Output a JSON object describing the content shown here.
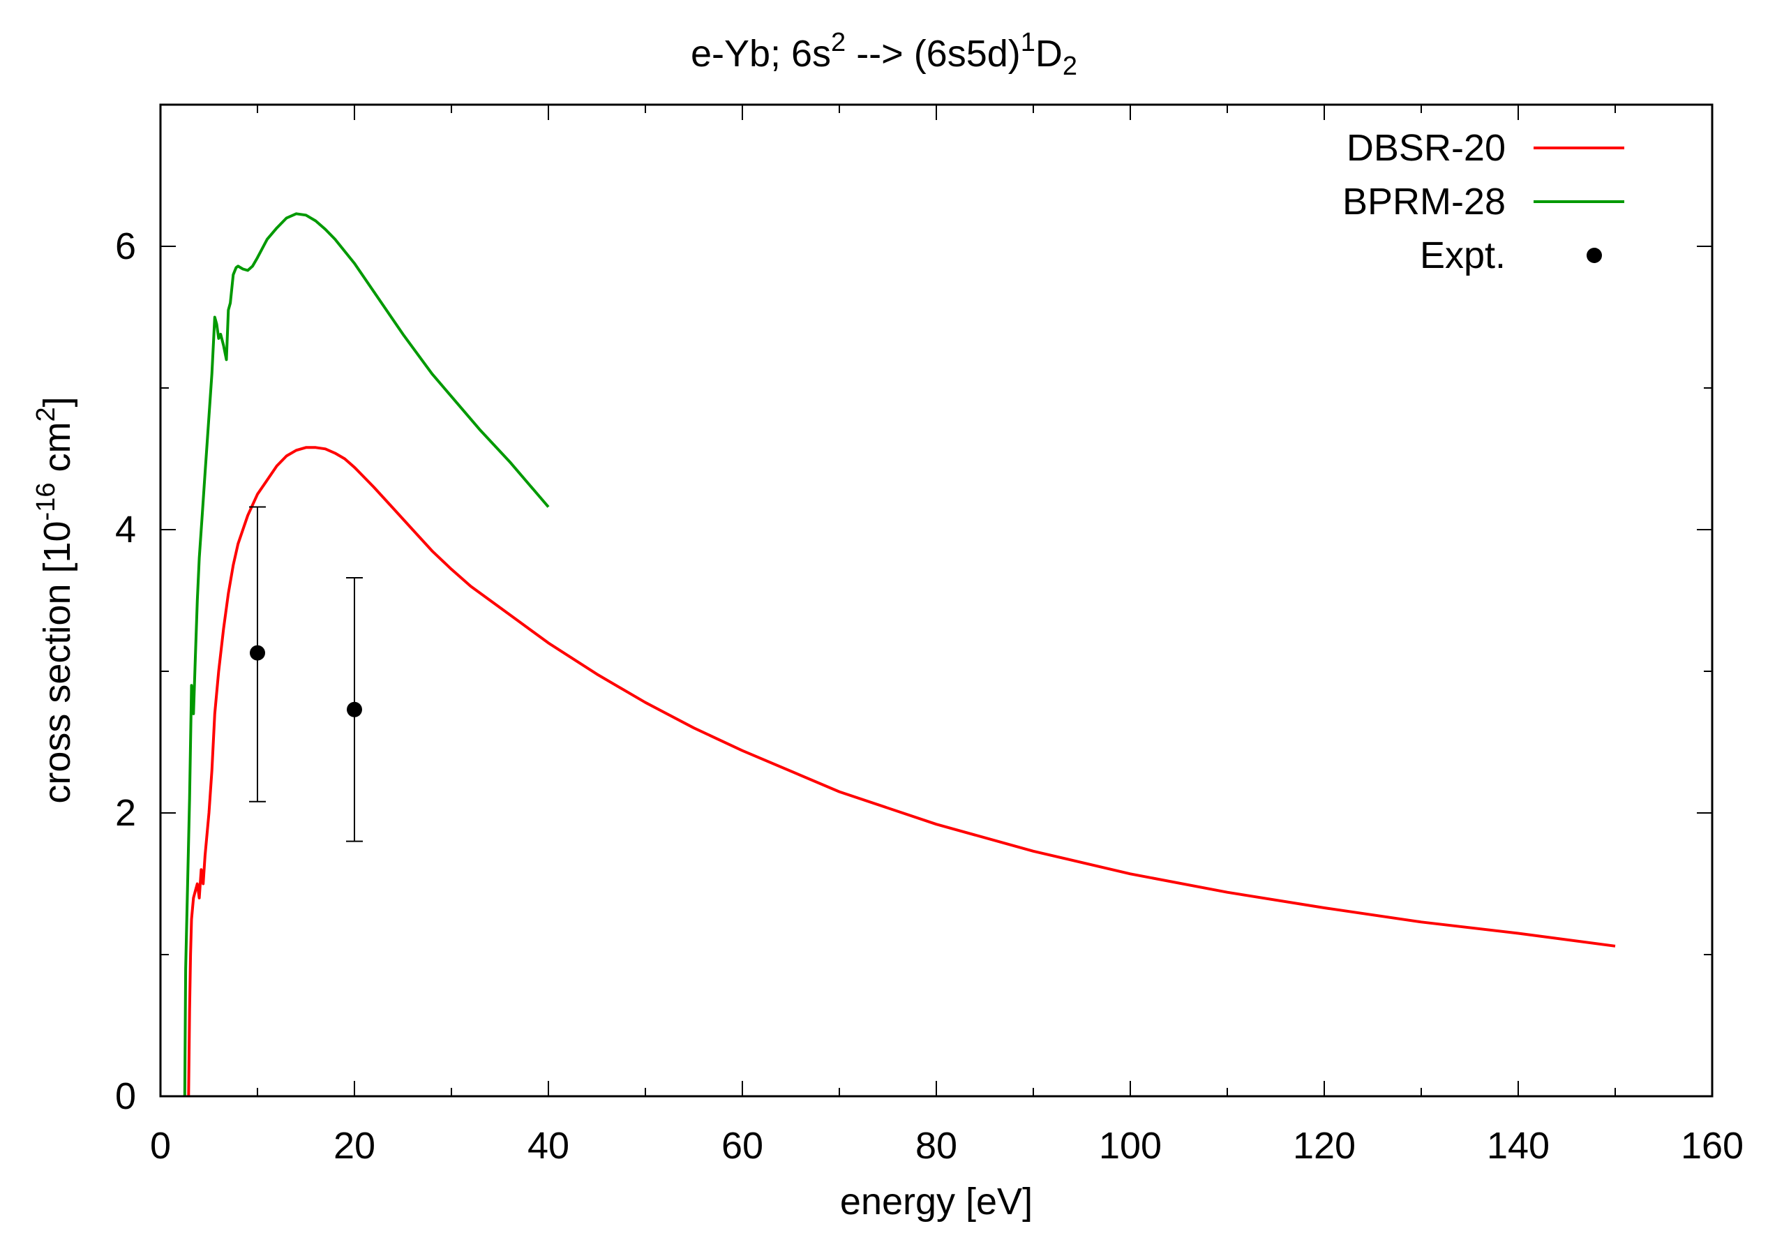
{
  "chart_data": {
    "type": "line",
    "title": {
      "prefix": "e-Yb; 6s",
      "sup1": "2",
      "middle": " --> (6s5d)",
      "sup2": "1",
      "main": "D",
      "sub": "2"
    },
    "xlabel": "energy [eV]",
    "ylabel": {
      "part1": "cross section [10",
      "sup1": "-16",
      "part2": " cm",
      "sup2": "2",
      "part3": "]"
    },
    "xlim": [
      0,
      160
    ],
    "ylim": [
      0,
      7
    ],
    "xticks": [
      0,
      20,
      40,
      60,
      80,
      100,
      120,
      140,
      160
    ],
    "yticks": [
      0,
      2,
      4,
      6
    ],
    "yminor_ticks": [
      1,
      3,
      5
    ],
    "xminor_ticks": [
      10,
      30,
      50,
      70,
      90,
      110,
      130,
      150
    ],
    "legend_position": "top-right",
    "series": [
      {
        "name": "DBSR-20",
        "color": "#ff0000",
        "style": "line",
        "x": [
          2.9,
          3.0,
          3.1,
          3.2,
          3.4,
          3.6,
          3.8,
          4.0,
          4.2,
          4.4,
          4.6,
          4.8,
          5.0,
          5.3,
          5.6,
          6.0,
          6.5,
          7.0,
          7.5,
          8.0,
          9.0,
          10.0,
          11.0,
          12.0,
          13.0,
          14.0,
          15.0,
          16.0,
          17.0,
          18.0,
          19.0,
          20.0,
          22.0,
          24.0,
          26.0,
          28.0,
          30.0,
          32.0,
          35.0,
          40.0,
          45.0,
          50.0,
          55.0,
          60.0,
          70.0,
          80.0,
          90.0,
          100.0,
          110.0,
          120.0,
          130.0,
          140.0,
          150.0
        ],
        "y": [
          0.0,
          0.6,
          1.0,
          1.25,
          1.4,
          1.45,
          1.5,
          1.4,
          1.6,
          1.5,
          1.7,
          1.85,
          2.0,
          2.3,
          2.7,
          3.0,
          3.3,
          3.55,
          3.75,
          3.9,
          4.1,
          4.25,
          4.35,
          4.45,
          4.52,
          4.56,
          4.58,
          4.58,
          4.57,
          4.54,
          4.5,
          4.44,
          4.3,
          4.15,
          4.0,
          3.85,
          3.72,
          3.6,
          3.45,
          3.2,
          2.98,
          2.78,
          2.6,
          2.44,
          2.15,
          1.92,
          1.73,
          1.57,
          1.44,
          1.33,
          1.23,
          1.15,
          1.06
        ]
      },
      {
        "name": "BPRM-28",
        "color": "#009900",
        "style": "line",
        "x": [
          2.5,
          2.6,
          2.8,
          3.0,
          3.2,
          3.4,
          3.6,
          3.8,
          4.0,
          4.3,
          4.6,
          5.0,
          5.3,
          5.6,
          5.8,
          6.0,
          6.2,
          6.5,
          6.8,
          7.0,
          7.2,
          7.5,
          7.8,
          8.0,
          8.5,
          9.0,
          9.5,
          10.0,
          11.0,
          12.0,
          13.0,
          14.0,
          15.0,
          16.0,
          17.0,
          18.0,
          20.0,
          22.0,
          25.0,
          28.0,
          30.0,
          33.0,
          36.0,
          40.0
        ],
        "y": [
          0.0,
          0.9,
          1.5,
          2.1,
          2.9,
          2.7,
          3.1,
          3.5,
          3.8,
          4.1,
          4.4,
          4.8,
          5.1,
          5.5,
          5.45,
          5.35,
          5.38,
          5.3,
          5.2,
          5.55,
          5.6,
          5.8,
          5.85,
          5.86,
          5.84,
          5.83,
          5.86,
          5.92,
          6.05,
          6.13,
          6.2,
          6.23,
          6.22,
          6.18,
          6.12,
          6.05,
          5.88,
          5.68,
          5.38,
          5.1,
          4.94,
          4.7,
          4.48,
          4.16
        ]
      },
      {
        "name": "Expt.",
        "color": "#000000",
        "style": "points",
        "x": [
          10,
          20
        ],
        "y": [
          3.13,
          2.73
        ],
        "yerr_low": [
          2.08,
          1.8
        ],
        "yerr_high": [
          4.16,
          3.66
        ]
      }
    ]
  }
}
